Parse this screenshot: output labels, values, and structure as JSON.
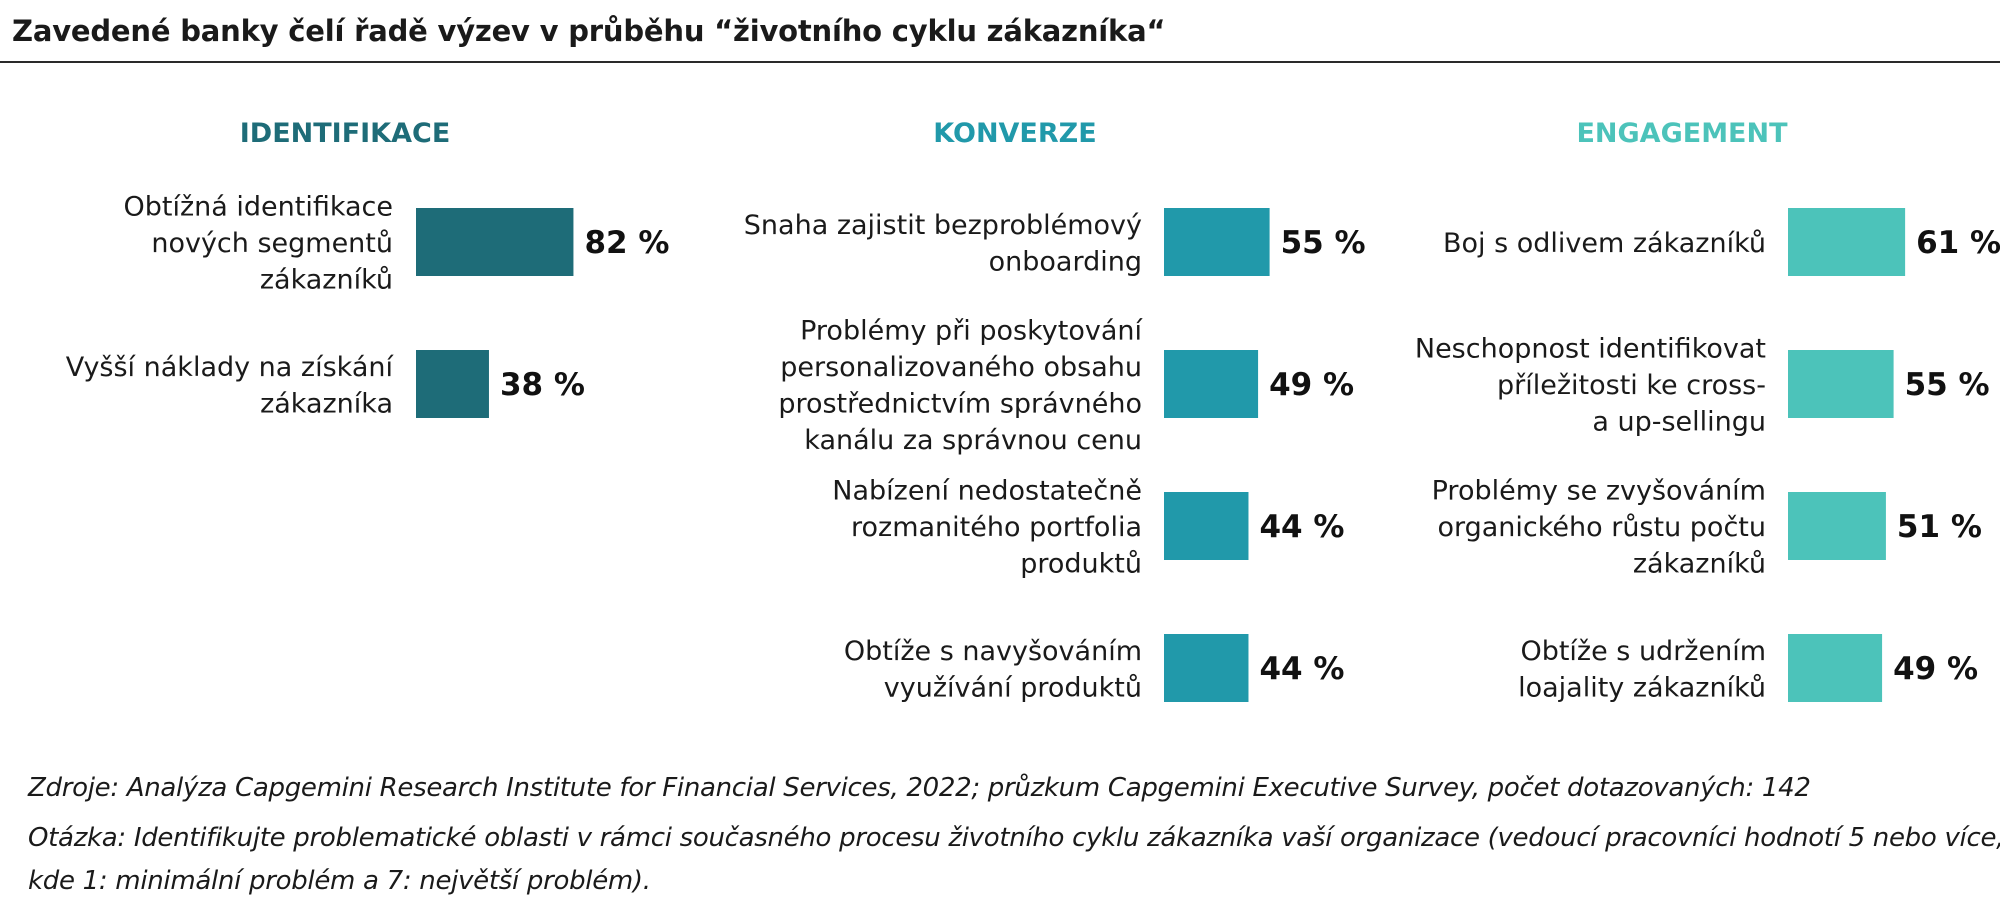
{
  "title": "Zavedené banky čelí řadě výzev v průběhu “životního cyklu zákazníka“",
  "colors": {
    "identifikace": "#1e6c78",
    "konverze": "#2199aa",
    "engagement": "#4cc3ba"
  },
  "chart_data": [
    {
      "type": "bar",
      "orientation": "horizontal",
      "title": "IDENTIFIKACE",
      "value_suffix": " %",
      "categories": [
        [
          "Obtížná identifikace",
          "nových segmentů",
          "zákazníků"
        ],
        [
          "Vyšší náklady na získání",
          "zákazníka"
        ]
      ],
      "values": [
        82,
        38
      ],
      "color_key": "identifikace"
    },
    {
      "type": "bar",
      "orientation": "horizontal",
      "title": "KONVERZE",
      "value_suffix": " %",
      "categories": [
        [
          "Snaha zajistit bezproblémový",
          "onboarding"
        ],
        [
          "Problémy při poskytování",
          "personalizovaného obsahu",
          "prostřednictvím správného",
          "kanálu za správnou cenu"
        ],
        [
          "Nabízení nedostatečně",
          "rozmanitého portfolia",
          "produktů"
        ],
        [
          "Obtíže s navyšováním",
          "využívání produktů"
        ]
      ],
      "values": [
        55,
        49,
        44,
        44
      ],
      "color_key": "konverze"
    },
    {
      "type": "bar",
      "orientation": "horizontal",
      "title": "ENGAGEMENT",
      "value_suffix": " %",
      "categories": [
        [
          "Boj s odlivem zákazníků"
        ],
        [
          "Neschopnost identifikovat",
          "příležitosti ke cross-",
          "a up-sellingu"
        ],
        [
          "Problémy se zvyšováním",
          "organického růstu počtu",
          "zákazníků"
        ],
        [
          "Obtíže s udržením",
          "loajality zákazníků"
        ]
      ],
      "values": [
        61,
        55,
        51,
        49
      ],
      "color_key": "engagement"
    }
  ],
  "footnotes": {
    "source": "Zdroje: Analýza Capgemini Research Institute for Financial Services, 2022; průzkum Capgemini Executive Survey, počet dotazovaných: 142",
    "question_line1": "Otázka: Identifikujte problematické oblasti v rámci současného procesu životního cyklu zákazníka vaší organizace (vedoucí pracovníci hodnotí 5 nebo více,",
    "question_line2": "kde 1: minimální problém a 7: největší problém)."
  }
}
